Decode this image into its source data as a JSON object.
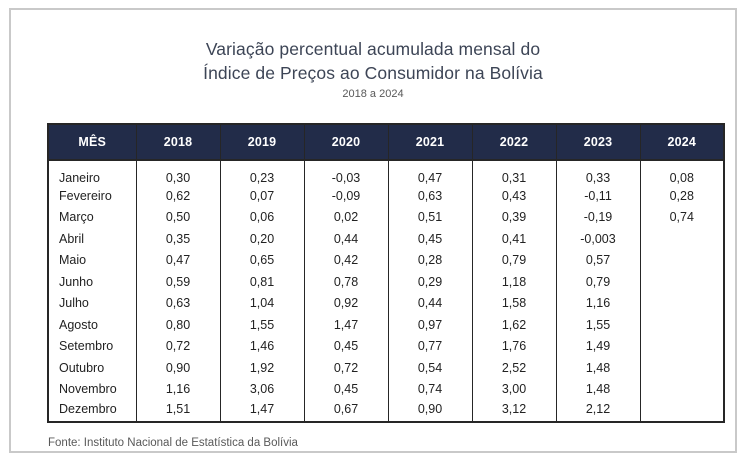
{
  "title": {
    "line1": "Variação percentual acumulada mensal do",
    "line2": "Índice de Preços ao Consumidor na Bolívia",
    "subtitle": "2018 a 2024"
  },
  "source": "Fonte: Instituto Nacional de Estatística da Bolívia",
  "colors": {
    "header_bg": "#222c49",
    "header_text": "#ffffff",
    "table_border": "#262626",
    "title_text": "#3d4556",
    "subtitle_text": "#595959",
    "source_text": "#595959",
    "frame_border": "#c9c9c9"
  },
  "chart_data": {
    "type": "table",
    "title": "Variação percentual acumulada mensal do Índice de Preços ao Consumidor na Bolívia",
    "subtitle": "2018 a 2024",
    "columns": [
      "MÊS",
      "2018",
      "2019",
      "2020",
      "2021",
      "2022",
      "2023",
      "2024"
    ],
    "rows": [
      [
        "Janeiro",
        "0,30",
        "0,23",
        "-0,03",
        "0,47",
        "0,31",
        "0,33",
        "0,08"
      ],
      [
        "Fevereiro",
        "0,62",
        "0,07",
        "-0,09",
        "0,63",
        "0,43",
        "-0,11",
        "0,28"
      ],
      [
        "Março",
        "0,50",
        "0,06",
        "0,02",
        "0,51",
        "0,39",
        "-0,19",
        "0,74"
      ],
      [
        "Abril",
        "0,35",
        "0,20",
        "0,44",
        "0,45",
        "0,41",
        "-0,003",
        ""
      ],
      [
        "Maio",
        "0,47",
        "0,65",
        "0,42",
        "0,28",
        "0,79",
        "0,57",
        ""
      ],
      [
        "Junho",
        "0,59",
        "0,81",
        "0,78",
        "0,29",
        "1,18",
        "0,79",
        ""
      ],
      [
        "Julho",
        "0,63",
        "1,04",
        "0,92",
        "0,44",
        "1,58",
        "1,16",
        ""
      ],
      [
        "Agosto",
        "0,80",
        "1,55",
        "1,47",
        "0,97",
        "1,62",
        "1,55",
        ""
      ],
      [
        "Setembro",
        "0,72",
        "1,46",
        "0,45",
        "0,77",
        "1,76",
        "1,49",
        ""
      ],
      [
        "Outubro",
        "0,90",
        "1,92",
        "0,72",
        "0,54",
        "2,52",
        "1,48",
        ""
      ],
      [
        "Novembro",
        "1,16",
        "3,06",
        "0,45",
        "0,74",
        "3,00",
        "1,48",
        ""
      ],
      [
        "Dezembro",
        "1,51",
        "1,47",
        "0,67",
        "0,90",
        "3,12",
        "2,12",
        ""
      ]
    ],
    "source": "Fonte: Instituto Nacional de Estatística da Bolívia"
  }
}
